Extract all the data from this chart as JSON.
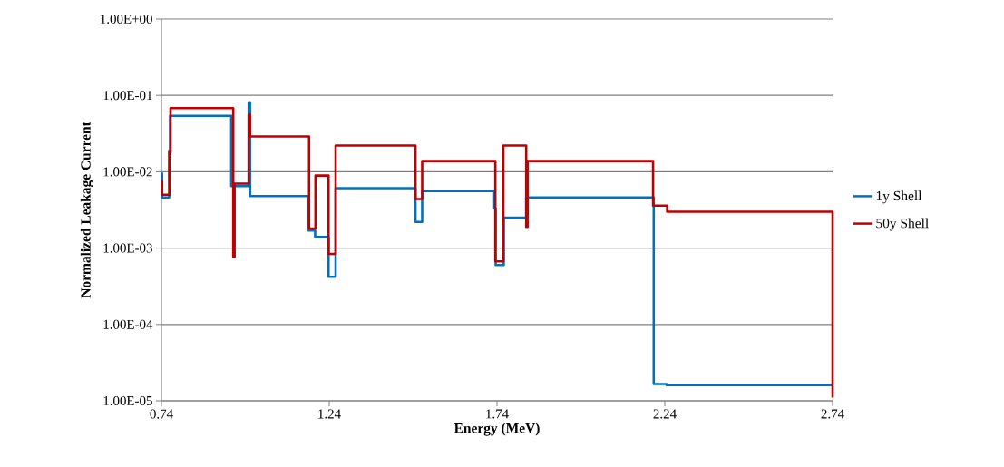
{
  "chart_data": {
    "type": "step",
    "xlabel": "Energy (MeV)",
    "ylabel": "Normalized Leakage Current",
    "log": "y",
    "grid": "y",
    "legend": "right",
    "line_style": "solid",
    "marker": "none",
    "xlim": [
      0.74,
      2.74
    ],
    "xticks": [
      0.74,
      1.24,
      1.74,
      2.24,
      2.74
    ],
    "ylim": [
      1e-05,
      1
    ],
    "yticks": [
      {
        "value": 1e-05,
        "label": "1.00E-05"
      },
      {
        "value": 0.0001,
        "label": "1.00E-04"
      },
      {
        "value": 0.001,
        "label": "1.00E-03"
      },
      {
        "value": 0.01,
        "label": "1.00E-02"
      },
      {
        "value": 0.1,
        "label": "1.00E-01"
      },
      {
        "value": 1,
        "label": "1.00E+00"
      }
    ],
    "series": [
      {
        "name": "1y Shell",
        "color": "#0070c0",
        "x": [
          0.74,
          0.742,
          0.763,
          0.766,
          0.948,
          1.0,
          1.004,
          1.178,
          1.198,
          1.238,
          1.259,
          1.497,
          1.517,
          1.732,
          1.736,
          1.76,
          1.827,
          2.207,
          2.245,
          2.74
        ],
        "values": [
          0.0095,
          0.0046,
          0.019,
          0.054,
          0.0065,
          0.081,
          0.0048,
          0.0017,
          0.0014,
          0.00042,
          0.0061,
          0.0022,
          0.0056,
          0.0033,
          0.0006,
          0.0025,
          0.0046,
          1.66e-05,
          1.6e-05,
          1.6e-05
        ]
      },
      {
        "name": "50y Shell",
        "color": "#c00000",
        "x": [
          0.74,
          0.742,
          0.764,
          0.767,
          0.954,
          0.958,
          1.0,
          1.004,
          1.18,
          1.199,
          1.238,
          1.259,
          1.497,
          1.517,
          1.735,
          1.759,
          1.827,
          1.831,
          2.205,
          2.247,
          2.74
        ],
        "values": [
          0.0075,
          0.005,
          0.018,
          0.068,
          0.00077,
          0.007,
          0.056,
          0.029,
          0.0018,
          0.0089,
          0.00084,
          0.022,
          0.0044,
          0.0138,
          0.00067,
          0.022,
          0.0019,
          0.0138,
          0.0036,
          0.003,
          1.1e-05
        ]
      }
    ]
  }
}
